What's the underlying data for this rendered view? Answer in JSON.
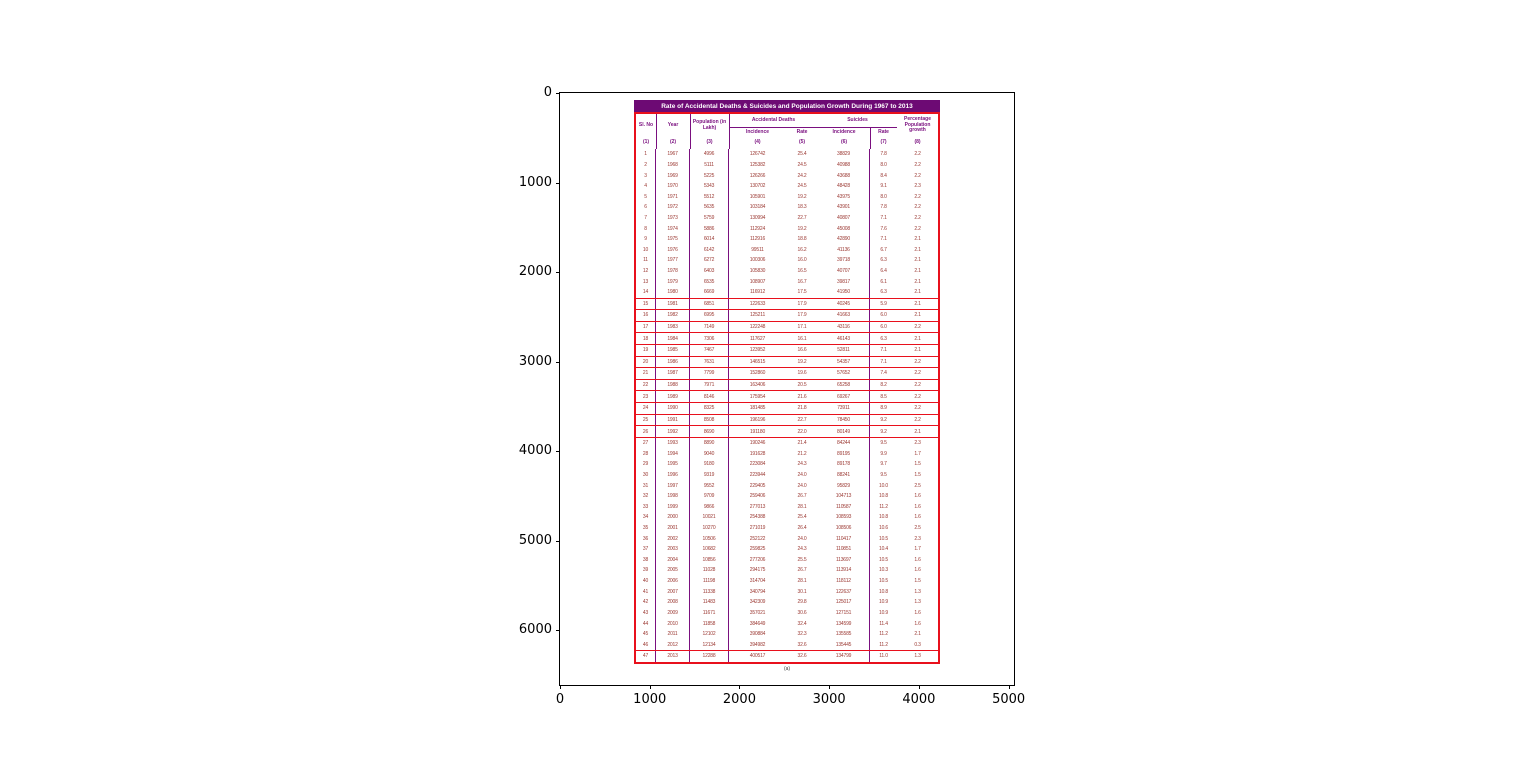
{
  "axes": {
    "x_ticks": [
      0,
      1000,
      2000,
      3000,
      4000,
      5000
    ],
    "y_ticks": [
      0,
      1000,
      2000,
      3000,
      4000,
      5000,
      6000
    ],
    "x_range": [
      0,
      5060
    ],
    "y_range": [
      0,
      6610
    ]
  },
  "colors": {
    "title_bar_bg": "#6d0a74",
    "title_text": "#ffffff",
    "header_text": "#7a0f7f",
    "data_text": "#9c3a34",
    "table_border_red": "#e8101c",
    "axis_black": "#000000"
  },
  "chart_data": {
    "type": "table",
    "title": "Rate of Accidental Deaths & Suicides and Population Growth During 1967 to 2013",
    "caption": "(a)",
    "group_headers": {
      "accidental_deaths": "Accidental Deaths",
      "suicides": "Suicides"
    },
    "column_headers": {
      "sl_no": "Sl. No",
      "year": "Year",
      "population": "Population (in Lakh)",
      "acc_incidence": "Incidence",
      "acc_rate": "Rate",
      "sui_incidence": "Incidence",
      "sui_rate": "Rate",
      "pct_growth": "Percentage Population growth"
    },
    "column_numbers": [
      "(1)",
      "(2)",
      "(3)",
      "(4)",
      "(5)",
      "(6)",
      "(7)",
      "(8)"
    ],
    "boxed_rows_sl": [
      15,
      16,
      17,
      18,
      19,
      20,
      21,
      22,
      23,
      24,
      25,
      26,
      47
    ],
    "rows": [
      [
        "1",
        "1967",
        "4996",
        "126742",
        "25.4",
        "38829",
        "7.8",
        "2.2"
      ],
      [
        "2",
        "1968",
        "5111",
        "125382",
        "24.5",
        "40988",
        "8.0",
        "2.2"
      ],
      [
        "3",
        "1969",
        "5225",
        "126266",
        "24.2",
        "43688",
        "8.4",
        "2.2"
      ],
      [
        "4",
        "1970",
        "5343",
        "130702",
        "24.5",
        "48428",
        "9.1",
        "2.3"
      ],
      [
        "5",
        "1971",
        "5512",
        "105901",
        "19.2",
        "43975",
        "8.0",
        "2.2"
      ],
      [
        "6",
        "1972",
        "5635",
        "103184",
        "18.3",
        "43901",
        "7.8",
        "2.2"
      ],
      [
        "7",
        "1973",
        "5759",
        "130994",
        "22.7",
        "40807",
        "7.1",
        "2.2"
      ],
      [
        "8",
        "1974",
        "5886",
        "112924",
        "19.2",
        "45008",
        "7.6",
        "2.2"
      ],
      [
        "9",
        "1975",
        "6014",
        "112916",
        "18.8",
        "42890",
        "7.1",
        "2.1"
      ],
      [
        "10",
        "1976",
        "6142",
        "99511",
        "16.2",
        "41136",
        "6.7",
        "2.1"
      ],
      [
        "11",
        "1977",
        "6272",
        "100306",
        "16.0",
        "39718",
        "6.3",
        "2.1"
      ],
      [
        "12",
        "1978",
        "6403",
        "105830",
        "16.5",
        "40707",
        "6.4",
        "2.1"
      ],
      [
        "13",
        "1979",
        "6535",
        "108907",
        "16.7",
        "39817",
        "6.1",
        "2.1"
      ],
      [
        "14",
        "1980",
        "6669",
        "116912",
        "17.5",
        "41950",
        "6.3",
        "2.1"
      ],
      [
        "15",
        "1981",
        "6851",
        "122633",
        "17.9",
        "40245",
        "5.9",
        "2.1"
      ],
      [
        "16",
        "1982",
        "6995",
        "125211",
        "17.9",
        "41663",
        "6.0",
        "2.1"
      ],
      [
        "17",
        "1983",
        "7149",
        "122248",
        "17.1",
        "43116",
        "6.0",
        "2.2"
      ],
      [
        "18",
        "1984",
        "7306",
        "117627",
        "16.1",
        "46143",
        "6.3",
        "2.1"
      ],
      [
        "19",
        "1985",
        "7467",
        "123952",
        "16.6",
        "52811",
        "7.1",
        "2.1"
      ],
      [
        "20",
        "1986",
        "7631",
        "146515",
        "19.2",
        "54357",
        "7.1",
        "2.2"
      ],
      [
        "21",
        "1987",
        "7799",
        "152860",
        "19.6",
        "57652",
        "7.4",
        "2.2"
      ],
      [
        "22",
        "1988",
        "7971",
        "163406",
        "20.5",
        "65258",
        "8.2",
        "2.2"
      ],
      [
        "23",
        "1989",
        "8146",
        "175954",
        "21.6",
        "69267",
        "8.5",
        "2.2"
      ],
      [
        "24",
        "1990",
        "8325",
        "181485",
        "21.8",
        "73911",
        "8.9",
        "2.2"
      ],
      [
        "25",
        "1991",
        "8508",
        "196196",
        "22.7",
        "78450",
        "9.2",
        "2.2"
      ],
      [
        "26",
        "1992",
        "8690",
        "191180",
        "22.0",
        "80149",
        "9.2",
        "2.1"
      ],
      [
        "27",
        "1993",
        "8890",
        "190246",
        "21.4",
        "84244",
        "9.5",
        "2.3"
      ],
      [
        "28",
        "1994",
        "9040",
        "191628",
        "21.2",
        "89195",
        "9.9",
        "1.7"
      ],
      [
        "29",
        "1995",
        "9180",
        "223084",
        "24.3",
        "89178",
        "9.7",
        "1.5"
      ],
      [
        "30",
        "1996",
        "9319",
        "223944",
        "24.0",
        "88241",
        "9.5",
        "1.5"
      ],
      [
        "31",
        "1997",
        "9552",
        "229405",
        "24.0",
        "95829",
        "10.0",
        "2.5"
      ],
      [
        "32",
        "1998",
        "9709",
        "259406",
        "26.7",
        "104713",
        "10.8",
        "1.6"
      ],
      [
        "33",
        "1999",
        "9866",
        "277013",
        "28.1",
        "110587",
        "11.2",
        "1.6"
      ],
      [
        "34",
        "2000",
        "10021",
        "254388",
        "25.4",
        "108593",
        "10.8",
        "1.6"
      ],
      [
        "35",
        "2001",
        "10270",
        "271019",
        "26.4",
        "108506",
        "10.6",
        "2.5"
      ],
      [
        "36",
        "2002",
        "10506",
        "252122",
        "24.0",
        "110417",
        "10.5",
        "2.3"
      ],
      [
        "37",
        "2003",
        "10682",
        "259825",
        "24.3",
        "110851",
        "10.4",
        "1.7"
      ],
      [
        "38",
        "2004",
        "10856",
        "277206",
        "25.5",
        "113697",
        "10.5",
        "1.6"
      ],
      [
        "39",
        "2005",
        "11028",
        "294175",
        "26.7",
        "113914",
        "10.3",
        "1.6"
      ],
      [
        "40",
        "2006",
        "11198",
        "314704",
        "28.1",
        "118112",
        "10.5",
        "1.5"
      ],
      [
        "41",
        "2007",
        "11338",
        "340794",
        "30.1",
        "122637",
        "10.8",
        "1.3"
      ],
      [
        "42",
        "2008",
        "11483",
        "342309",
        "29.8",
        "125017",
        "10.9",
        "1.3"
      ],
      [
        "43",
        "2009",
        "11671",
        "357021",
        "30.6",
        "127151",
        "10.9",
        "1.6"
      ],
      [
        "44",
        "2010",
        "11858",
        "384649",
        "32.4",
        "134599",
        "11.4",
        "1.6"
      ],
      [
        "45",
        "2011",
        "12102",
        "390884",
        "32.3",
        "135585",
        "11.2",
        "2.1"
      ],
      [
        "46",
        "2012",
        "12134",
        "394982",
        "32.6",
        "135445",
        "11.2",
        "0.3"
      ],
      [
        "47",
        "2013",
        "12288",
        "400517",
        "32.6",
        "134799",
        "11.0",
        "1.3"
      ]
    ]
  }
}
